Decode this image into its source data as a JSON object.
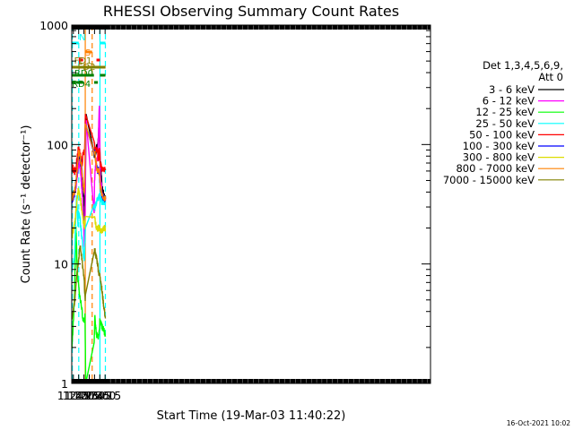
{
  "chart_data": {
    "type": "line",
    "title": "RHESSI Observing Summary Count Rates",
    "xlabel": "Start Time (19-Mar-03 11:40:22)",
    "ylabel": "Count Rate (s⁻¹ detector⁻¹)",
    "y_scale": "log",
    "ylim": [
      1,
      1000
    ],
    "xlim": [
      100.4,
      1118.0
    ],
    "y_ticks": [
      {
        "value": 1,
        "label": "1"
      },
      {
        "value": 10,
        "label": "10"
      },
      {
        "value": 100,
        "label": "100"
      },
      {
        "value": 1000,
        "label": "1000"
      }
    ],
    "x_ticks": [
      {
        "value": 105,
        "label": "11:45"
      },
      {
        "value": 120,
        "label": "12:00"
      },
      {
        "value": 135,
        "label": "12:15"
      },
      {
        "value": 150,
        "label": "12:30"
      },
      {
        "value": 165,
        "label": "12:45"
      },
      {
        "value": 180,
        "label": "13:00"
      },
      {
        "value": 195,
        "label": "13:15"
      }
    ],
    "x_units": "minutes since 11:00 UT",
    "legend": {
      "placement": "right",
      "header_line1": "Det 1,3,4,5,6,9,",
      "header_line2": "Att 0"
    },
    "series": [
      {
        "name": "3 - 6 keV",
        "color": "#000000",
        "x": [
          101,
          108,
          114,
          118,
          120,
          124,
          128,
          132,
          134,
          136,
          137,
          138,
          141,
          164,
          166,
          168,
          171,
          174,
          176,
          178,
          179,
          181,
          186,
          191,
          196
        ],
        "y": [
          36,
          40,
          52,
          70,
          80,
          75,
          60,
          45,
          38,
          30,
          24,
          30,
          180,
          80,
          82,
          85,
          95,
          100,
          120,
          150,
          125,
          75,
          45,
          38,
          35
        ]
      },
      {
        "name": "6 - 12 keV",
        "color": "#ff00ff",
        "x": [
          101,
          108,
          114,
          118,
          120,
          124,
          128,
          132,
          134,
          136,
          137,
          138,
          141,
          164,
          165,
          168,
          171,
          174,
          176,
          178,
          179,
          181,
          186,
          191,
          196
        ],
        "y": [
          35,
          38,
          48,
          62,
          72,
          65,
          48,
          30,
          22,
          15,
          13,
          22,
          160,
          25,
          50,
          70,
          72,
          78,
          110,
          200,
          210,
          60,
          40,
          36,
          34
        ]
      },
      {
        "name": "12 - 25 keV",
        "color": "#00ff00",
        "x": [
          101,
          108,
          112,
          114,
          116,
          118,
          120,
          124,
          128,
          132,
          134,
          136,
          137,
          138,
          140,
          164,
          166,
          168,
          171,
          174,
          176,
          178,
          179,
          180,
          186,
          191,
          196
        ],
        "y": [
          2.0,
          5.0,
          20,
          15,
          9,
          7.5,
          6.5,
          5.0,
          4.5,
          3.5,
          3.3,
          3.4,
          3.3,
          3.7,
          1.0,
          2.2,
          4.0,
          3.0,
          2.5,
          2.5,
          2.4,
          2.6,
          2.8,
          3.5,
          3.0,
          2.8,
          2.5
        ]
      },
      {
        "name": "25 - 50 keV",
        "color": "#00ffff",
        "x": [
          101,
          108,
          114,
          118,
          120,
          124,
          128,
          132,
          134,
          136,
          137,
          138,
          139,
          164,
          166,
          168,
          171,
          174,
          176,
          178,
          179,
          181,
          186,
          191,
          196
        ],
        "y": [
          9.5,
          11,
          38,
          22,
          28,
          24,
          18,
          14,
          12,
          11,
          13,
          16,
          20,
          30,
          30,
          31,
          34,
          34,
          35,
          38,
          40,
          35,
          33,
          33,
          32
        ]
      },
      {
        "name": "50 - 100 keV",
        "color": "#ff0000",
        "x": [
          101,
          104,
          105,
          110,
          113,
          114,
          116,
          118,
          120,
          124,
          128,
          131,
          132,
          134,
          136,
          137,
          138,
          139,
          164,
          166,
          168,
          171,
          174,
          176,
          178,
          179,
          181,
          186,
          191,
          196
        ],
        "y": [
          63,
          63,
          60,
          60,
          62,
          70,
          80,
          90,
          92,
          85,
          72,
          68,
          88,
          85,
          88,
          92,
          130,
          180,
          100,
          95,
          92,
          88,
          85,
          75,
          90,
          95,
          70,
          62,
          62,
          62
        ]
      },
      {
        "name": "100 - 300 keV",
        "color": "#0000ff",
        "x": [
          101,
          108,
          114,
          118,
          120,
          124,
          128,
          132,
          134,
          136,
          137,
          138,
          139,
          164,
          166,
          168,
          171,
          174,
          176,
          178,
          179,
          181,
          186,
          191,
          196
        ],
        "y": [
          34,
          38,
          52,
          72,
          85,
          80,
          65,
          48,
          42,
          40,
          45,
          80,
          150,
          90,
          85,
          75,
          65,
          60,
          62,
          55,
          60,
          45,
          38,
          35,
          35
        ]
      },
      {
        "name": "300 - 800 keV",
        "color": "#dcdc00",
        "x": [
          101,
          108,
          114,
          118,
          120,
          124,
          128,
          132,
          134,
          136,
          137,
          138,
          139,
          164,
          166,
          168,
          171,
          174,
          176,
          178,
          179,
          181,
          186,
          191,
          196
        ],
        "y": [
          17,
          21,
          30,
          40,
          40,
          36,
          30,
          24,
          22,
          21,
          20,
          22,
          25,
          26,
          24,
          22,
          20,
          20,
          20,
          20,
          20,
          19,
          19,
          20,
          20
        ]
      },
      {
        "name": "800 - 7000 keV",
        "color": "#ff8000",
        "x": [
          101,
          108,
          114,
          118,
          120,
          124,
          128,
          132,
          134,
          136,
          137,
          138,
          139,
          164,
          166,
          168,
          171,
          174,
          176,
          178,
          179,
          181,
          186,
          191,
          196
        ],
        "y": [
          35,
          40,
          55,
          75,
          85,
          80,
          65,
          50,
          44,
          40,
          45,
          80,
          150,
          90,
          85,
          75,
          65,
          60,
          62,
          58,
          60,
          45,
          38,
          35,
          35
        ]
      },
      {
        "name": "7000 - 15000 keV",
        "color": "#808000",
        "x": [
          101,
          106,
          110,
          114,
          118,
          120,
          124,
          128,
          132,
          134,
          136,
          137,
          138,
          139,
          164,
          166,
          168,
          171,
          174,
          176,
          178,
          179,
          181,
          186,
          191,
          196
        ],
        "y": [
          3.5,
          4.2,
          5.5,
          8.0,
          10,
          11,
          14,
          12,
          9,
          8,
          7,
          6,
          5,
          5.5,
          13,
          13,
          12,
          11,
          10,
          9,
          8,
          8,
          8,
          6,
          4.5,
          3.5
        ]
      }
    ],
    "flag_bars": [
      {
        "label": "N",
        "color": "#00ffff",
        "label_x": 121.1,
        "segments": [
          [
            101,
            120.3
          ],
          [
            181,
            196
          ]
        ]
      },
      {
        "label": "S",
        "color": "#ff8000",
        "label_x": 138.3,
        "segments": [
          [
            138.7,
            158.3
          ]
        ]
      },
      {
        "label": "F",
        "color": "#ff0000",
        "label_x": 118.5,
        "segments": [
          [
            120.3,
            132.6
          ],
          [
            170.5,
            180.4
          ]
        ]
      },
      {
        "label": "FD1",
        "color": "#808000",
        "label_x": 107.0,
        "segments": [
          [
            101,
            196
          ]
        ]
      },
      {
        "label": "FD2",
        "color": "#808000",
        "label_x": 117.4,
        "segments": [
          [
            101,
            196
          ]
        ]
      },
      {
        "label": "RD0",
        "color": "#008000",
        "label_x": 108.0,
        "segments": [
          [
            101,
            163.3
          ],
          [
            180.4,
            196
          ]
        ]
      },
      {
        "label": "RD4",
        "color": "#008000",
        "label_x": 100.6,
        "segments": [
          [
            101,
            111.8
          ],
          [
            114.3,
            133.7
          ],
          [
            164.0,
            174.5
          ]
        ]
      }
    ],
    "vertical_markers": [
      {
        "x": 102.0,
        "color": "#00ffff",
        "style": "dashed"
      },
      {
        "x": 120.3,
        "color": "#00ffff",
        "style": "dashed"
      },
      {
        "x": 138.7,
        "color": "#ff8000",
        "style": "solid"
      },
      {
        "x": 158.3,
        "color": "#ff8000",
        "style": "dashed"
      },
      {
        "x": 180.4,
        "color": "#00ffff",
        "style": "solid"
      },
      {
        "x": 195.8,
        "color": "#00ffff",
        "style": "dashed"
      }
    ],
    "timestamp": "16-Oct-2021 10:02"
  }
}
